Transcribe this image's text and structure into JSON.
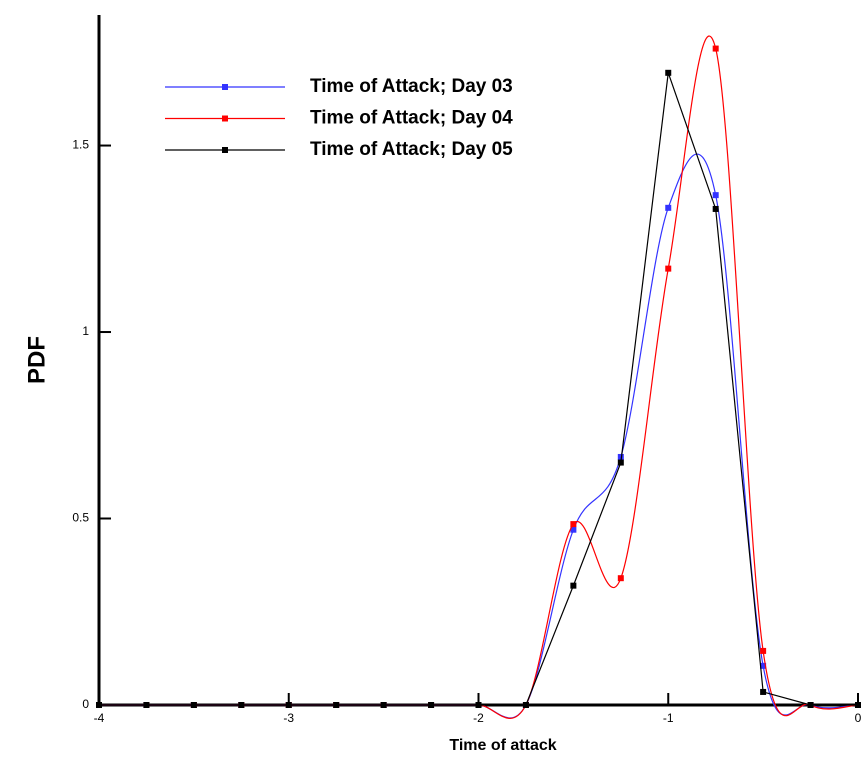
{
  "chart_data": {
    "type": "line",
    "x_label": "Time of attack",
    "y_label": "PDF",
    "x": [
      -4,
      -3.75,
      -3.5,
      -3.25,
      -3,
      -2.75,
      -2.5,
      -2.25,
      -2,
      -1.75,
      -1.5,
      -1.25,
      -1,
      -0.75,
      -0.5,
      -0.25,
      0
    ],
    "series": [
      {
        "name": "Time of Attack; Day 03",
        "color": "#3333ff",
        "smooth": true,
        "values": [
          0,
          0,
          0,
          0,
          0,
          0,
          0,
          0,
          0,
          0,
          0.47,
          0.665,
          1.333,
          1.367,
          0.105,
          0,
          0
        ]
      },
      {
        "name": "Time of Attack; Day 04",
        "color": "#ff0000",
        "smooth": true,
        "values": [
          0,
          0,
          0,
          0,
          0,
          0,
          0,
          0,
          0,
          0,
          0.485,
          0.34,
          1.17,
          1.76,
          0.145,
          0,
          0
        ]
      },
      {
        "name": "Time of Attack; Day 05",
        "color": "#000000",
        "smooth": false,
        "values": [
          0,
          0,
          0,
          0,
          0,
          0,
          0,
          0,
          0,
          0,
          0.32,
          0.65,
          1.695,
          1.33,
          0.035,
          0,
          0
        ]
      }
    ],
    "xlim": [
      -4,
      0
    ],
    "xticks": [
      -4,
      -3,
      -2,
      -1,
      0
    ],
    "ylim": [
      0,
      1.85
    ],
    "yticks": [
      0,
      0.5,
      1,
      1.5
    ],
    "grid": false,
    "legend": "upper left"
  }
}
